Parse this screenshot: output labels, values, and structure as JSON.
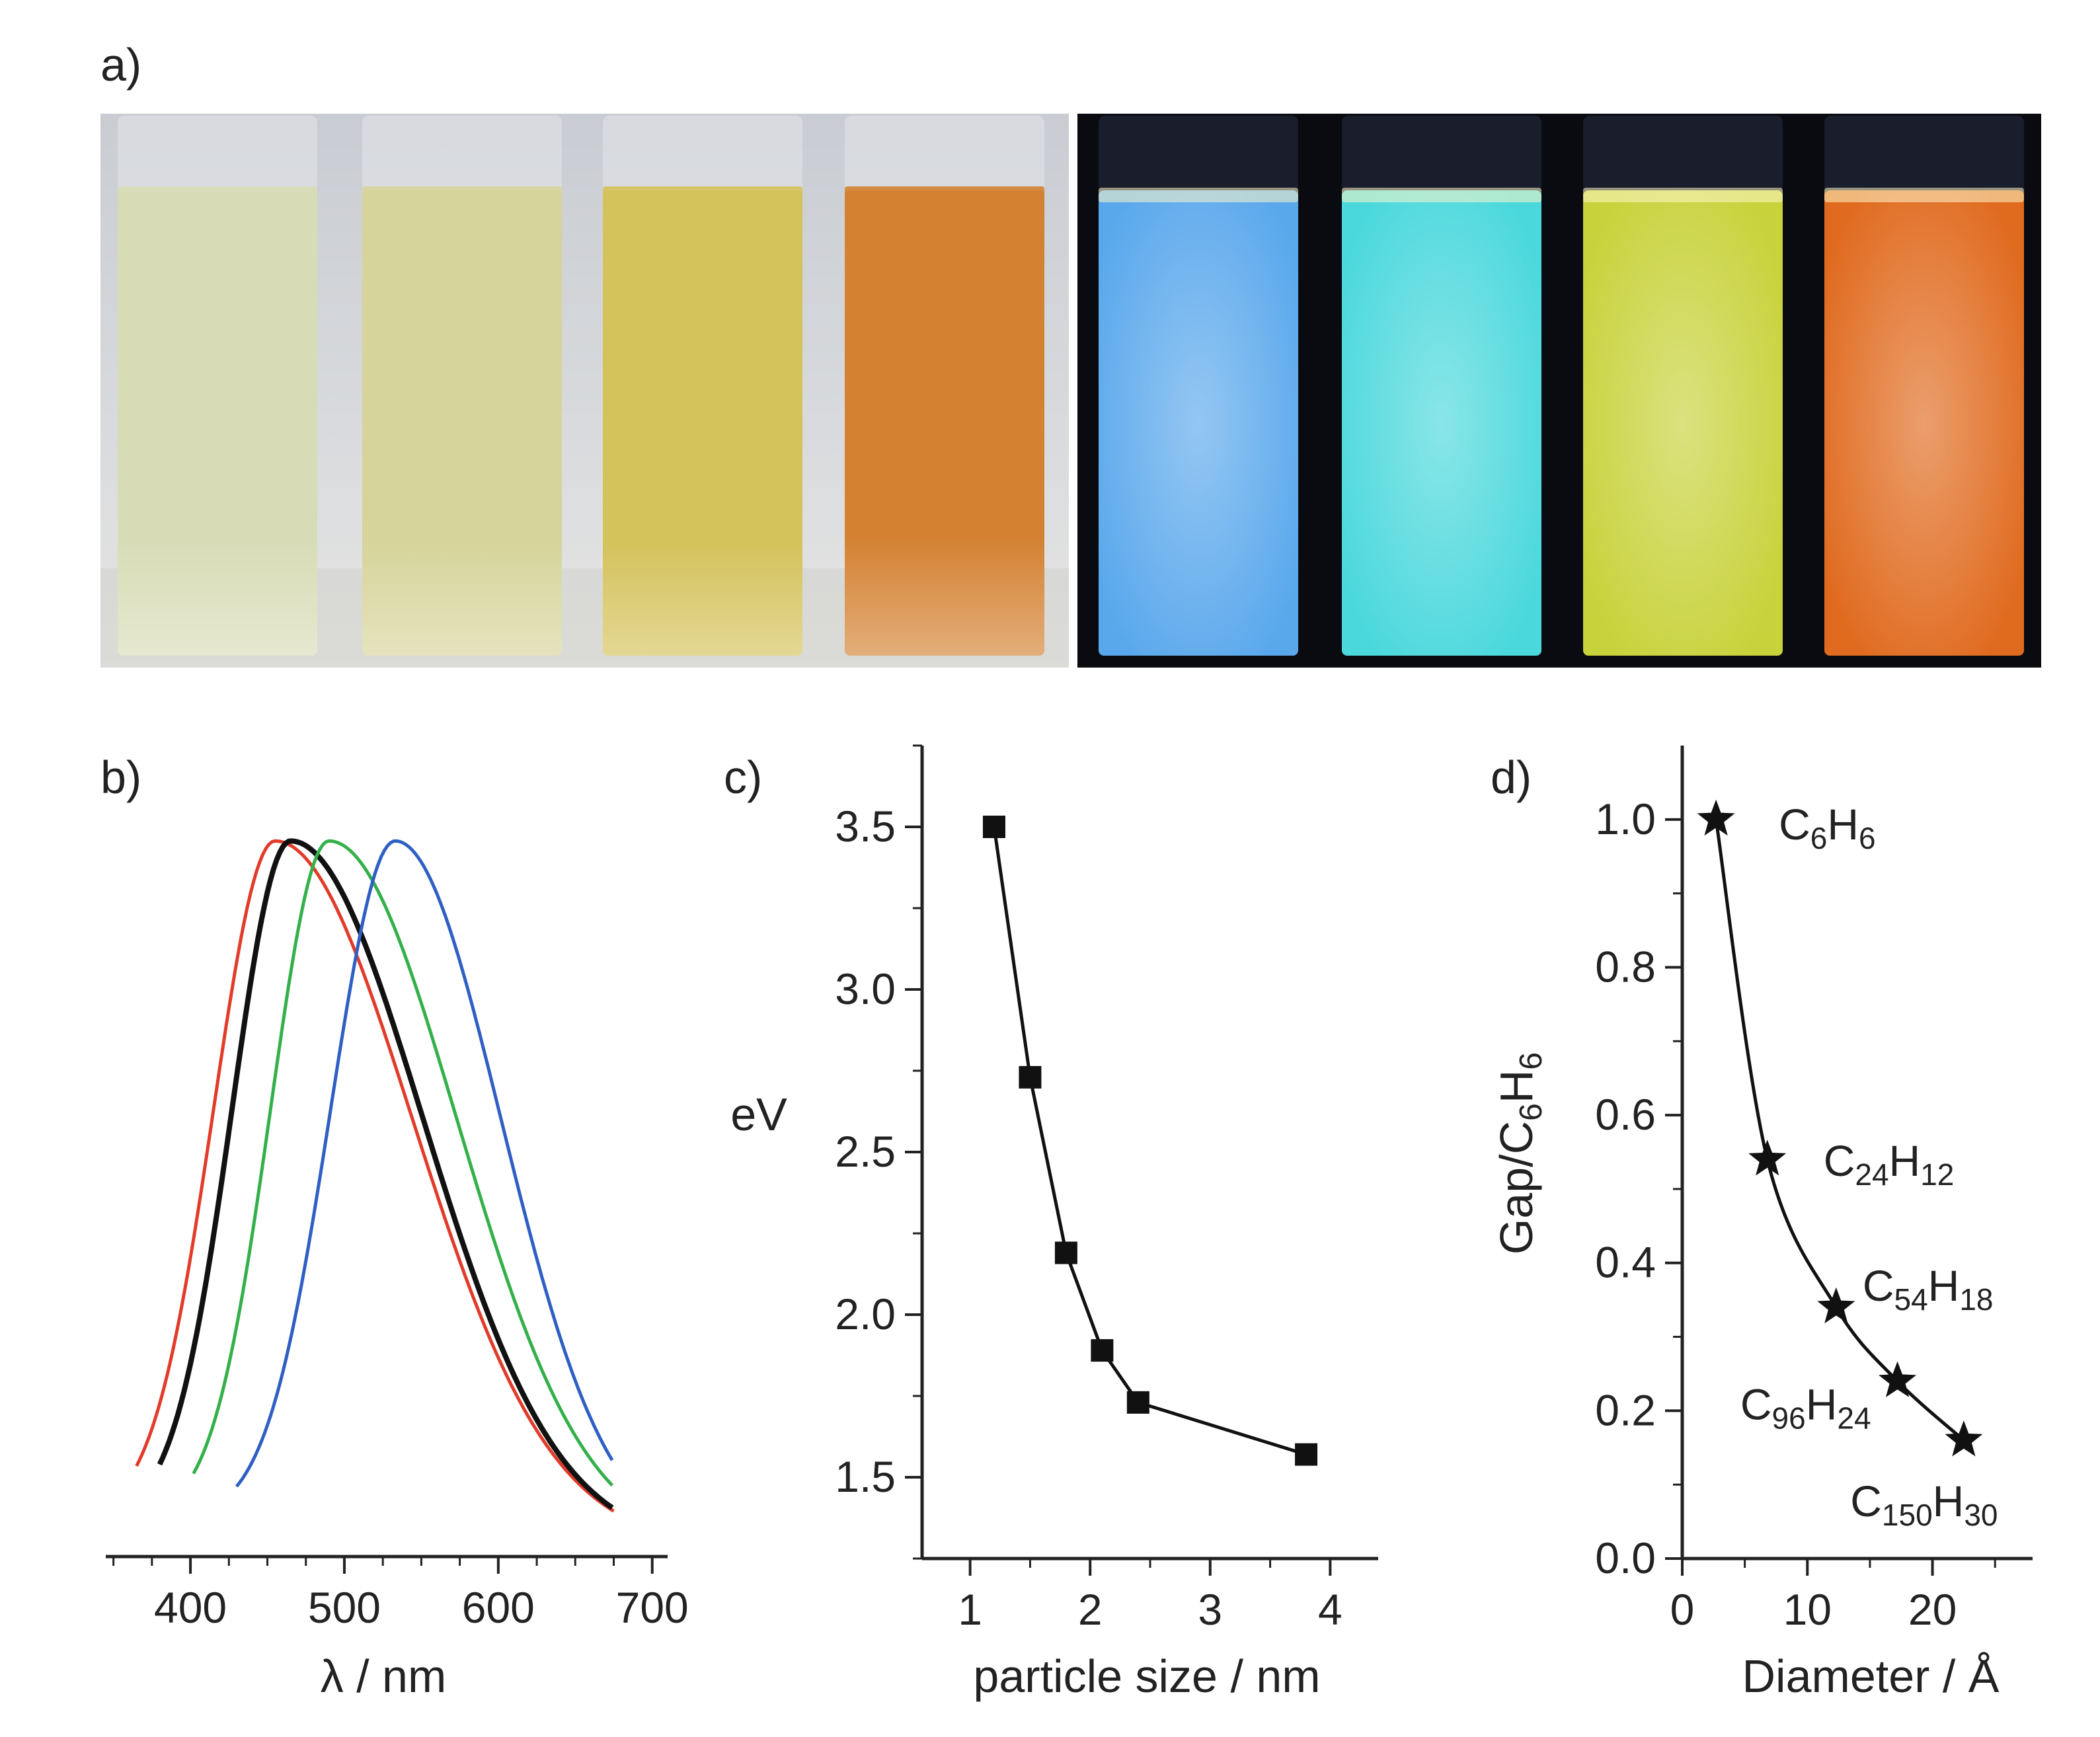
{
  "panel_labels": {
    "a": "a)",
    "b": "b)",
    "c": "c)",
    "d": "d)"
  },
  "colors": {
    "vials_daylight": [
      "#d8dcb6",
      "#d6d49a",
      "#d4c25a",
      "#d48232"
    ],
    "vials_uv": [
      "#5aa8ec",
      "#4ad8dc",
      "#c8d23a",
      "#e06a1e"
    ],
    "spectra": [
      "#e23b2a",
      "#111111",
      "#34b04a",
      "#2f5fc4"
    ]
  },
  "chart_data": [
    {
      "panel": "b",
      "type": "line",
      "title": "",
      "xlabel": "λ / nm",
      "ylabel": "",
      "xlim": [
        345,
        710
      ],
      "ylim": [
        0,
        1.05
      ],
      "xticks": [
        400,
        500,
        600,
        700
      ],
      "series": [
        {
          "name": "red",
          "color": "#e23b2a",
          "x_start": 365,
          "peak": 455,
          "x_end": 675,
          "sigma_left": 40,
          "sigma_right": 88
        },
        {
          "name": "black",
          "color": "#111111",
          "x_start": 380,
          "peak": 465,
          "x_end": 675,
          "sigma_left": 38,
          "sigma_right": 85
        },
        {
          "name": "green",
          "color": "#34b04a",
          "x_start": 402,
          "peak": 490,
          "x_end": 675,
          "sigma_left": 38,
          "sigma_right": 82
        },
        {
          "name": "blue",
          "color": "#2f5fc4",
          "x_start": 430,
          "peak": 533,
          "x_end": 675,
          "sigma_left": 42,
          "sigma_right": 68
        }
      ]
    },
    {
      "panel": "c",
      "type": "line",
      "title": "",
      "xlabel": "particle size / nm",
      "ylabel": "eV",
      "xlim": [
        0.6,
        4.4
      ],
      "ylim": [
        1.25,
        3.75
      ],
      "xticks": [
        1,
        2,
        3,
        4
      ],
      "yticks": [
        1.5,
        2.0,
        2.5,
        3.0,
        3.5
      ],
      "ytick_labels": [
        "1.5",
        "2.0",
        "2.5",
        "3.0",
        "3.5"
      ],
      "x": [
        1.2,
        1.5,
        1.8,
        2.1,
        2.4,
        3.8
      ],
      "y": [
        3.5,
        2.73,
        2.19,
        1.89,
        1.73,
        1.57
      ]
    },
    {
      "panel": "d",
      "type": "line",
      "title": "",
      "xlabel": "Diameter / Å",
      "ylabel": "Gap/C6H6",
      "xlim": [
        0,
        28
      ],
      "ylim": [
        0.0,
        1.1
      ],
      "xticks": [
        0,
        10,
        20
      ],
      "yticks": [
        0.0,
        0.2,
        0.4,
        0.6,
        0.8,
        1.0
      ],
      "ytick_labels": [
        "0.0",
        "0.2",
        "0.4",
        "0.6",
        "0.8",
        "1.0"
      ],
      "x": [
        2.7,
        6.8,
        12.3,
        17.2,
        22.5
      ],
      "y": [
        1.0,
        0.54,
        0.34,
        0.24,
        0.16
      ],
      "labels": [
        {
          "base": "C",
          "n1": "6",
          "mid": "H",
          "n2": "6"
        },
        {
          "base": "C",
          "n1": "24",
          "mid": "H",
          "n2": "12"
        },
        {
          "base": "C",
          "n1": "54",
          "mid": "H",
          "n2": "18"
        },
        {
          "base": "C",
          "n1": "96",
          "mid": "H",
          "n2": "24"
        },
        {
          "base": "C",
          "n1": "150",
          "mid": "H",
          "n2": "30"
        }
      ]
    }
  ]
}
